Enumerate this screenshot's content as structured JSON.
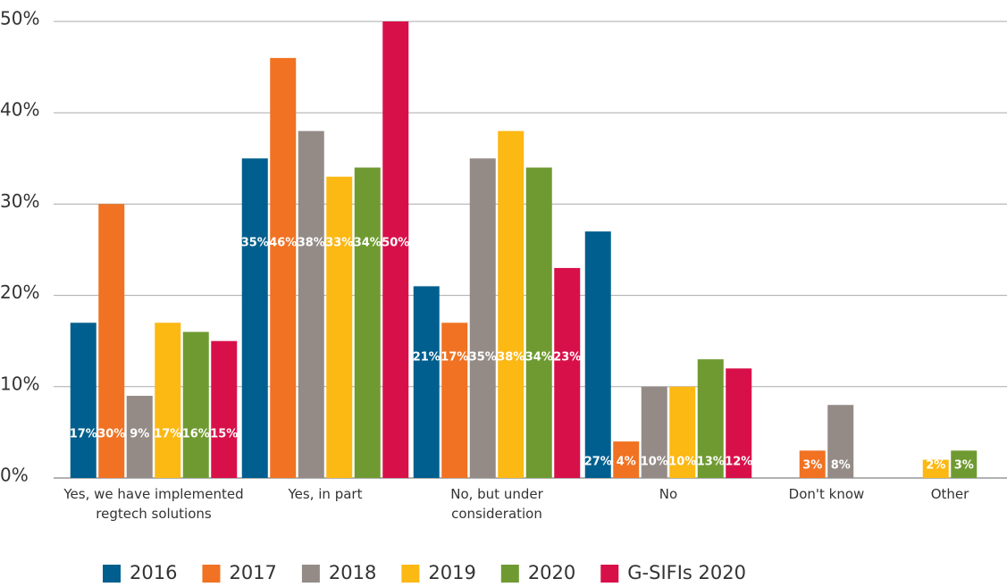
{
  "chart_data": {
    "type": "bar",
    "categories": [
      "Yes, we have implemented regtech solutions",
      "Yes, in part",
      "No, but under consideration",
      "No",
      "Don't know",
      "Other"
    ],
    "series": [
      {
        "name": "2016",
        "color": "#005f8e",
        "values": [
          17,
          35,
          21,
          27,
          null,
          null
        ],
        "value_labels": [
          "17%",
          "35%",
          "21%",
          "27%",
          null,
          null
        ]
      },
      {
        "name": "2017",
        "color": "#f07222",
        "values": [
          30,
          46,
          17,
          4,
          3,
          null
        ],
        "value_labels": [
          "30%",
          "46%",
          "17%",
          "4%",
          "3%",
          null
        ]
      },
      {
        "name": "2018",
        "color": "#948b87",
        "values": [
          9,
          38,
          35,
          10,
          8,
          null
        ],
        "value_labels": [
          "9%",
          "38%",
          "35%",
          "10%",
          "8%",
          null
        ]
      },
      {
        "name": "2019",
        "color": "#fcb813",
        "values": [
          17,
          33,
          38,
          10,
          null,
          2
        ],
        "value_labels": [
          "17%",
          "33%",
          "38%",
          "10%",
          null,
          "2%"
        ]
      },
      {
        "name": "2020",
        "color": "#6f9a31",
        "values": [
          16,
          34,
          34,
          13,
          null,
          3
        ],
        "value_labels": [
          "16%",
          "34%",
          "34%",
          "13%",
          null,
          "3%"
        ]
      },
      {
        "name": "G-SIFIs 2020",
        "color": "#d8104a",
        "values": [
          15,
          50,
          23,
          12,
          null,
          null
        ],
        "value_labels": [
          "15%",
          "50%",
          "23%",
          "12%",
          null,
          null
        ]
      }
    ],
    "ylim": [
      0,
      50
    ],
    "yticks": [
      {
        "value": 0,
        "label": "0%"
      },
      {
        "value": 10,
        "label": "10%"
      },
      {
        "value": 20,
        "label": "20%"
      },
      {
        "value": 30,
        "label": "30%"
      },
      {
        "value": 40,
        "label": "40%"
      },
      {
        "value": 50,
        "label": "50%"
      }
    ],
    "grid": true,
    "legend": "bottom"
  }
}
